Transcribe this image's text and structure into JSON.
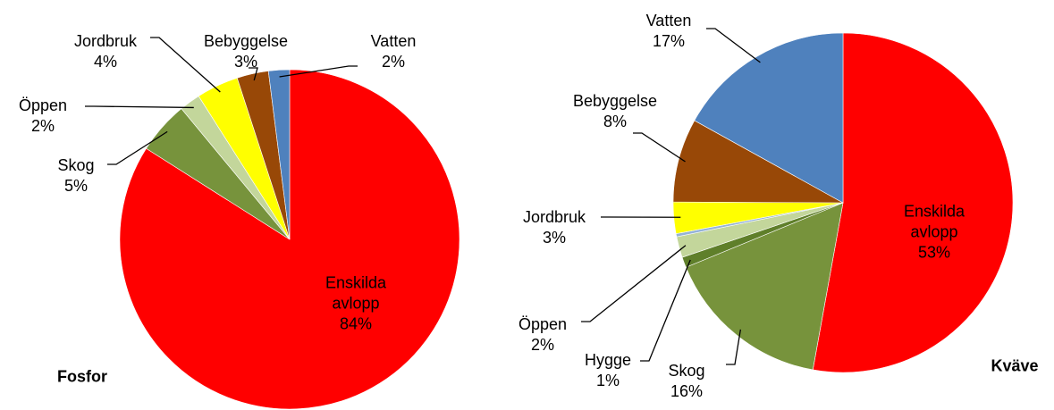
{
  "chart_data": [
    {
      "type": "pie",
      "title": "Fosfor",
      "categories": [
        "Enskilda avlopp",
        "Skog",
        "Öppen",
        "Jordbruk",
        "Bebyggelse",
        "Vatten"
      ],
      "values": [
        84,
        5,
        2,
        4,
        3,
        2
      ],
      "value_labels": [
        "84%",
        "5%",
        "2%",
        "4%",
        "3%",
        "2%"
      ],
      "colors": [
        "#ff0000",
        "#77933c",
        "#c3d69b",
        "#ffff00",
        "#984807",
        "#4f81bd"
      ]
    },
    {
      "type": "pie",
      "title": "Kväve",
      "categories": [
        "Enskilda avlopp",
        "Skog",
        "Hygge",
        "Öppen",
        null,
        "Jordbruk",
        "Bebyggelse",
        "Vatten"
      ],
      "values": [
        53,
        16,
        1,
        2,
        0.3,
        3,
        8,
        17
      ],
      "value_labels": [
        "53%",
        "16%",
        "1%",
        "2%",
        null,
        "3%",
        "8%",
        "17%"
      ],
      "colors": [
        "#ff0000",
        "#77933c",
        "#5f7f2a",
        "#c3d69b",
        "#95b3d7",
        "#ffff00",
        "#984807",
        "#4f81bd"
      ]
    }
  ]
}
